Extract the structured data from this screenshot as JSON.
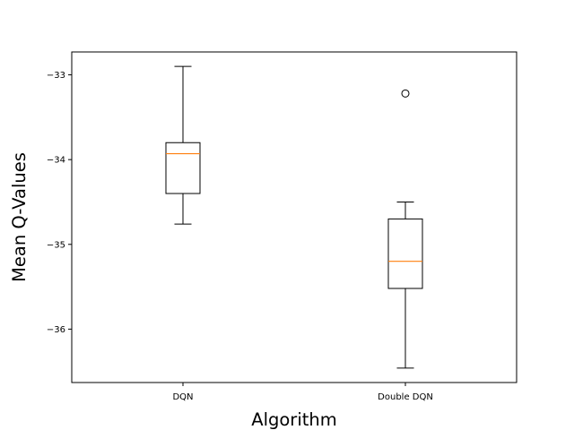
{
  "chart_data": {
    "type": "boxplot",
    "title": "",
    "xlabel": "Algorithm",
    "ylabel": "Mean Q-Values",
    "ylim": [
      -36.63,
      -32.73
    ],
    "yticks": [
      -33,
      -34,
      -35,
      -36
    ],
    "ytick_labels": [
      "−33",
      "−34",
      "−35",
      "−36"
    ],
    "grid": false,
    "categories": [
      "DQN",
      "Double DQN"
    ],
    "boxes": [
      {
        "category": "DQN",
        "whisker_low": -34.76,
        "q1": -34.4,
        "median": -33.93,
        "q3": -33.8,
        "whisker_high": -32.9,
        "outliers": []
      },
      {
        "category": "Double DQN",
        "whisker_low": -36.46,
        "q1": -35.52,
        "median": -35.2,
        "q3": -34.7,
        "whisker_high": -34.5,
        "outliers": [
          -33.22
        ]
      }
    ],
    "colors": {
      "box": "#000000",
      "median": "#ff7f0e",
      "outlier": "#000000"
    }
  }
}
